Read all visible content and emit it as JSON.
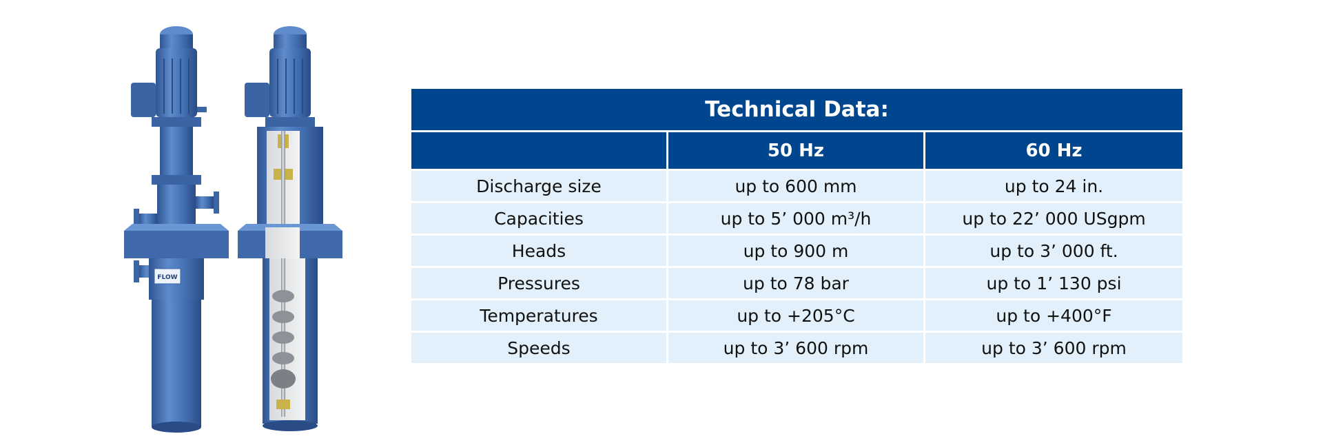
{
  "table": {
    "title": "Technical Data:",
    "columns": [
      "",
      "50 Hz",
      "60 Hz"
    ],
    "rows": [
      {
        "label": "Discharge size",
        "hz50": "up to 600 mm",
        "hz60": "up to 24 in."
      },
      {
        "label": "Capacities",
        "hz50": "up to 5’ 000 m³/h",
        "hz60": "up to 22’ 000 USgpm"
      },
      {
        "label": "Heads",
        "hz50": "up to 900 m",
        "hz60": "up to 3’ 000 ft."
      },
      {
        "label": "Pressures",
        "hz50": "up to 78 bar",
        "hz60": "up to 1’ 130 psi"
      },
      {
        "label": "Temperatures",
        "hz50": "up to +205°C",
        "hz60": "up to +400°F"
      },
      {
        "label": "Speeds",
        "hz50": "up to 3’ 600 rpm",
        "hz60": "up to 3’ 600 rpm"
      }
    ]
  },
  "colors": {
    "header_blue": "#00468e",
    "row_light_blue": "#e1f0fa",
    "pump_blue": "#4a72b0"
  },
  "images": {
    "left": "vertical-pump-exterior",
    "right": "vertical-pump-cutaway",
    "logo": "FLOW"
  }
}
